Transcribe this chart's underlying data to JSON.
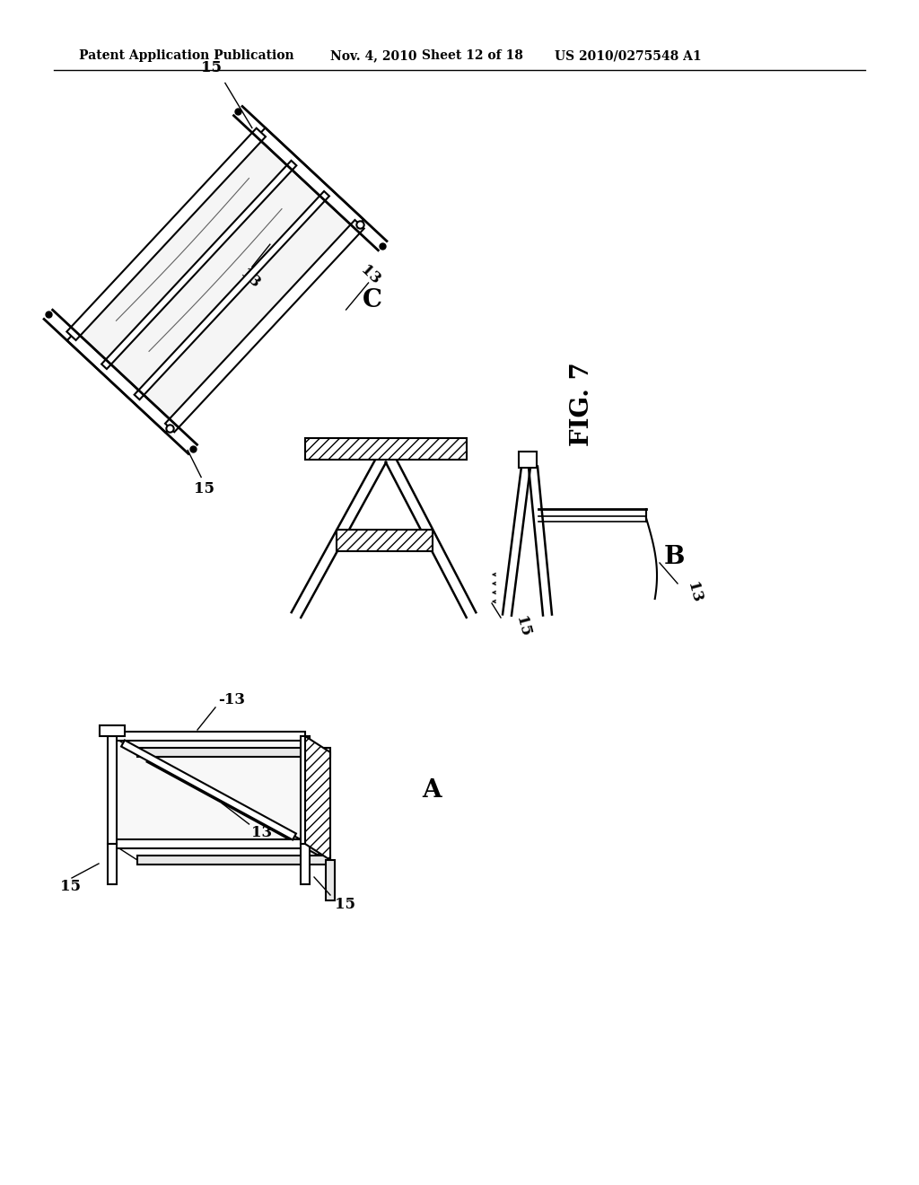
{
  "bg_color": "#ffffff",
  "header_text": "Patent Application Publication",
  "header_date": "Nov. 4, 2010",
  "header_sheet": "Sheet 12 of 18",
  "header_patent": "US 2010/0275548 A1",
  "fig_label": "FIG. 7",
  "line_color": "#000000"
}
